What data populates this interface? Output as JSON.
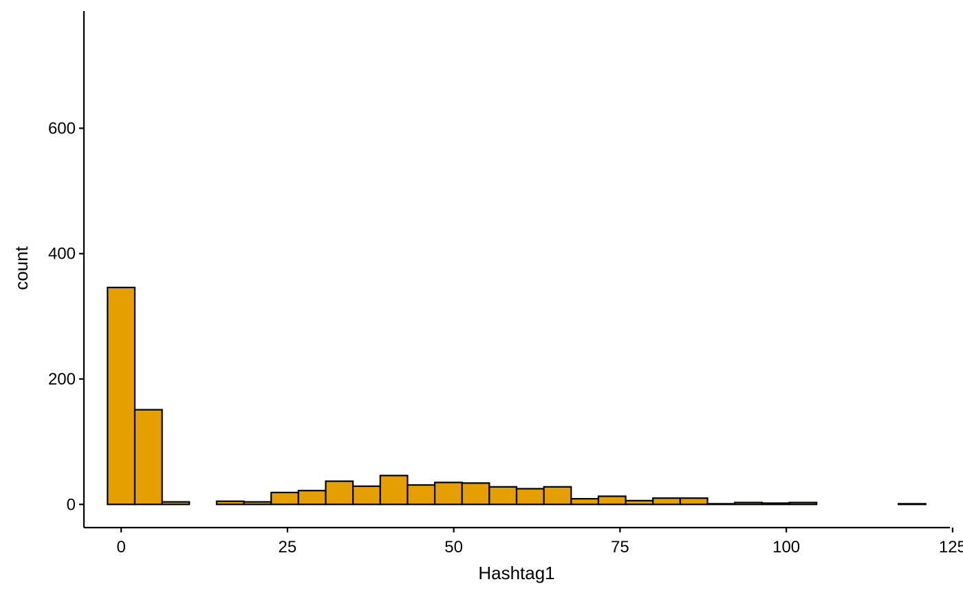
{
  "chart_data": {
    "type": "bar",
    "title": "",
    "xlabel": "Hashtag1",
    "ylabel": "count",
    "xlim": [
      -5.6,
      124.6
    ],
    "ylim": [
      -37,
      787
    ],
    "x_ticks": [
      0,
      25,
      50,
      75,
      100,
      125
    ],
    "y_ticks": [
      0,
      200,
      400,
      600
    ],
    "x_tick_labels": [
      "0",
      "25",
      "50",
      "75",
      "100",
      "125"
    ],
    "y_tick_labels": [
      "0",
      "200",
      "400",
      "600"
    ],
    "grid": false,
    "bar_color": "#E69F00",
    "bar_edge_color": "#000000",
    "bins": {
      "starts": [
        -2.05,
        2.05,
        6.15,
        10.25,
        14.35,
        18.45,
        22.55,
        26.65,
        30.75,
        34.85,
        38.95,
        43.05,
        47.15,
        51.25,
        55.35,
        59.45,
        63.55,
        67.65,
        71.75,
        75.85,
        79.95,
        84.05,
        88.15,
        92.25,
        96.35,
        100.45,
        104.55,
        108.65,
        112.75,
        116.85
      ],
      "width": 4.1,
      "counts": [
        346,
        151,
        4,
        0,
        5,
        4,
        19,
        22,
        37,
        29,
        46,
        31,
        35,
        34,
        28,
        25,
        28,
        9,
        13,
        6,
        10,
        10,
        1,
        3,
        2,
        3,
        0,
        0,
        0,
        1
      ]
    }
  }
}
